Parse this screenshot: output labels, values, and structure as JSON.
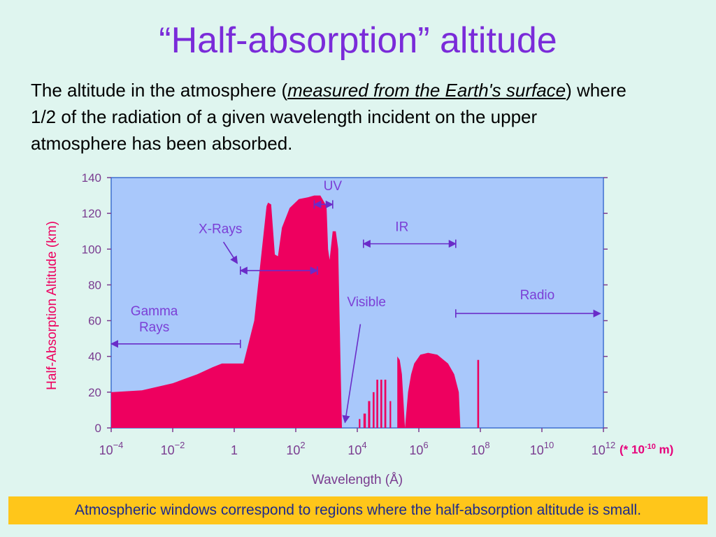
{
  "slide": {
    "title": "“Half-absorption” altitude",
    "definition": {
      "part1": "The altitude in the atmosphere (",
      "emphasis": "measured from the Earth's surface",
      "part2": ") where 1/2 of the radiation of a given wavelength incident on the upper atmosphere has been absorbed."
    },
    "unit_note": {
      "prefix": "(* 10",
      "exponent": "-10",
      "suffix": " m)"
    },
    "footer": "Atmospheric windows correspond to regions where the half-absorption altitude is small."
  },
  "colors": {
    "plot_bg": "#a9c8fb",
    "fill": "#ee005f",
    "axis_text": "#7a3c90",
    "annotation": "#7b3fd6",
    "arrow": "#6a2cc8"
  },
  "chart_data": {
    "type": "area",
    "xlabel": "Wavelength (Å)",
    "ylabel": "Half-Absorption Altitude (km)",
    "x_scale": "log10",
    "xlim_log10": [
      -4,
      12
    ],
    "ylim": [
      0,
      140
    ],
    "yticks": [
      0,
      20,
      40,
      60,
      80,
      100,
      120,
      140
    ],
    "xtick_labels": [
      {
        "v": -4,
        "base": "10",
        "exp": "−4"
      },
      {
        "v": -2,
        "base": "10",
        "exp": "−2"
      },
      {
        "v": 0,
        "base": "1",
        "exp": ""
      },
      {
        "v": 2,
        "base": "10",
        "exp": "2"
      },
      {
        "v": 4,
        "base": "10",
        "exp": "4"
      },
      {
        "v": 6,
        "base": "10",
        "exp": "6"
      },
      {
        "v": 8,
        "base": "10",
        "exp": "8"
      },
      {
        "v": 10,
        "base": "10",
        "exp": "10"
      },
      {
        "v": 12,
        "base": "10",
        "exp": "12"
      }
    ],
    "grid": false,
    "series": [
      {
        "points": [
          [
            -4,
            0
          ],
          [
            -4,
            20
          ],
          [
            -3,
            21
          ],
          [
            -2,
            25
          ],
          [
            -1.2,
            30
          ],
          [
            -0.7,
            34
          ],
          [
            -0.4,
            36
          ],
          [
            0.0,
            36
          ],
          [
            0.3,
            36
          ],
          [
            0.65,
            60
          ],
          [
            0.9,
            100
          ],
          [
            1.05,
            124
          ],
          [
            1.1,
            126
          ],
          [
            1.2,
            125
          ],
          [
            1.32,
            97
          ],
          [
            1.42,
            96
          ],
          [
            1.55,
            112
          ],
          [
            1.8,
            123
          ],
          [
            2.1,
            128
          ],
          [
            2.4,
            129
          ],
          [
            2.6,
            130
          ],
          [
            2.8,
            130
          ],
          [
            3.0,
            124
          ],
          [
            3.05,
            100
          ],
          [
            3.1,
            94
          ],
          [
            3.2,
            110
          ],
          [
            3.3,
            110
          ],
          [
            3.38,
            100
          ],
          [
            3.45,
            40
          ],
          [
            3.5,
            0
          ],
          [
            4.05,
            0
          ],
          [
            4.05,
            5
          ],
          [
            4.1,
            5
          ],
          [
            4.1,
            0
          ],
          [
            4.2,
            0
          ],
          [
            4.2,
            8
          ],
          [
            4.28,
            8
          ],
          [
            4.28,
            0
          ],
          [
            4.35,
            0
          ],
          [
            4.35,
            15
          ],
          [
            4.42,
            15
          ],
          [
            4.42,
            0
          ],
          [
            4.5,
            0
          ],
          [
            4.5,
            20
          ],
          [
            4.56,
            20
          ],
          [
            4.56,
            0
          ],
          [
            4.62,
            0
          ],
          [
            4.62,
            27
          ],
          [
            4.68,
            27
          ],
          [
            4.68,
            0
          ],
          [
            4.75,
            0
          ],
          [
            4.75,
            27
          ],
          [
            4.81,
            27
          ],
          [
            4.81,
            0
          ],
          [
            4.88,
            0
          ],
          [
            4.88,
            27
          ],
          [
            4.94,
            27
          ],
          [
            4.94,
            0
          ],
          [
            5.05,
            0
          ],
          [
            5.05,
            15
          ],
          [
            5.1,
            15
          ],
          [
            5.1,
            0
          ],
          [
            5.3,
            0
          ],
          [
            5.3,
            40
          ],
          [
            5.38,
            38
          ],
          [
            5.45,
            30
          ],
          [
            5.55,
            0
          ],
          [
            5.55,
            0
          ],
          [
            5.65,
            20
          ],
          [
            5.75,
            30
          ],
          [
            5.85,
            36
          ],
          [
            6.05,
            41
          ],
          [
            6.3,
            42
          ],
          [
            6.6,
            41
          ],
          [
            6.95,
            36
          ],
          [
            7.15,
            30
          ],
          [
            7.3,
            20
          ],
          [
            7.35,
            0
          ],
          [
            7.9,
            0
          ],
          [
            7.9,
            38
          ],
          [
            7.96,
            38
          ],
          [
            7.96,
            0
          ],
          [
            12,
            0
          ]
        ]
      }
    ],
    "annotations": [
      {
        "text": "Gamma",
        "x": -2.6,
        "y": 63
      },
      {
        "text": "Rays",
        "x": -2.6,
        "y": 54
      },
      {
        "text": "X-Rays",
        "x": -0.45,
        "y": 109
      },
      {
        "text": "UV",
        "x": 3.2,
        "y": 133
      },
      {
        "text": "IR",
        "x": 5.45,
        "y": 110
      },
      {
        "text": "Visible",
        "x": 4.3,
        "y": 68
      },
      {
        "text": "Radio",
        "x": 9.85,
        "y": 72
      }
    ],
    "ranges": [
      {
        "from": -4,
        "to": 0.2,
        "y": 47,
        "ends": "arrow-left"
      },
      {
        "from": 0.2,
        "to": 2.7,
        "y": 88,
        "ends": "both"
      },
      {
        "from": 2.6,
        "to": 3.2,
        "y": 125,
        "ends": "both"
      },
      {
        "from": 4.2,
        "to": 7.2,
        "y": 103,
        "ends": "both"
      },
      {
        "from": 7.2,
        "to": 11.9,
        "y": 64,
        "ends": "arrow-right"
      }
    ],
    "pointers": [
      {
        "from": [
          4.1,
          58
        ],
        "to": [
          3.6,
          3
        ],
        "label": "Visible"
      },
      {
        "from": [
          -0.35,
          104
        ],
        "to": [
          0.1,
          92
        ],
        "label": "X-Rays"
      }
    ]
  }
}
